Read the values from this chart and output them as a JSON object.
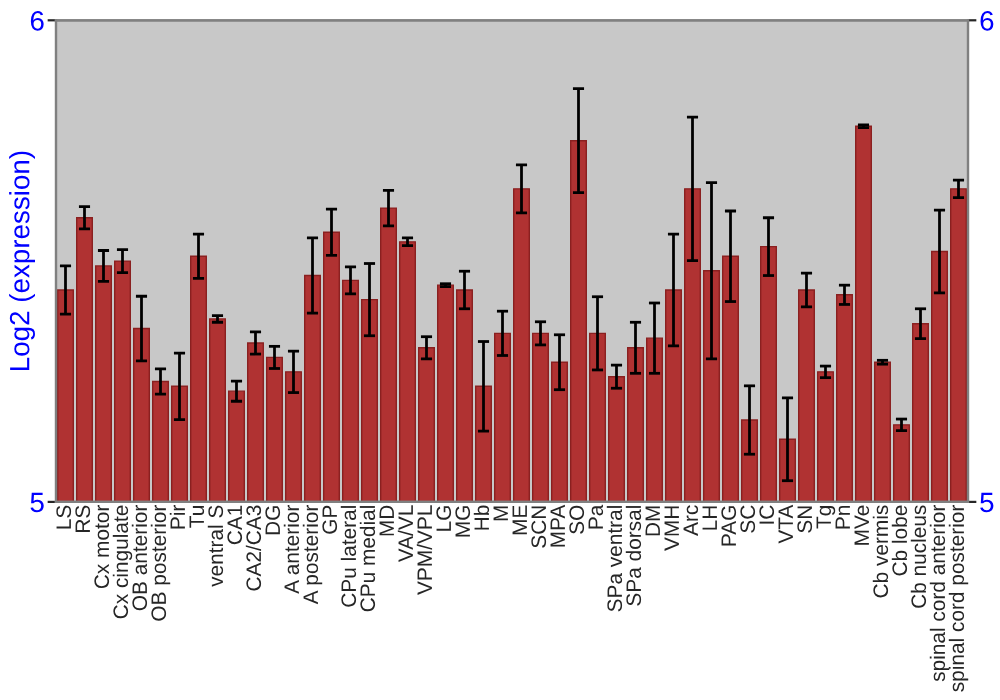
{
  "chart_data": {
    "type": "bar",
    "ylabel": "Log2 (expression)",
    "categories": [
      "LS",
      "RS",
      "Cx motor",
      "Cx cingulate",
      "OB anterior",
      "OB posterior",
      "Pir",
      "Tu",
      "ventral S",
      "CA1",
      "CA2/CA3",
      "DG",
      "A anterior",
      "A posterior",
      "GP",
      "CPu lateral",
      "CPu medial",
      "MD",
      "VA/VL",
      "VPM/VPL",
      "LG",
      "MG",
      "Hb",
      "M",
      "ME",
      "SCN",
      "MPA",
      "SO",
      "Pa",
      "SPa ventral",
      "SPa dorsal",
      "DM",
      "VMH",
      "Arc",
      "LH",
      "PAG",
      "SC",
      "IC",
      "VTA",
      "SN",
      "Tg",
      "Pn",
      "MVe",
      "Cb vermis",
      "Cb lobe",
      "Cb nucleus",
      "spinal cord anterior",
      "spinal cord posterior"
    ],
    "values": [
      5.44,
      5.59,
      5.49,
      5.5,
      5.36,
      5.25,
      5.24,
      5.51,
      5.38,
      5.23,
      5.33,
      5.3,
      5.27,
      5.47,
      5.56,
      5.46,
      5.42,
      5.61,
      5.54,
      5.32,
      5.45,
      5.44,
      5.24,
      5.35,
      5.65,
      5.35,
      5.29,
      5.75,
      5.35,
      5.26,
      5.32,
      5.34,
      5.44,
      5.65,
      5.48,
      5.51,
      5.17,
      5.53,
      5.13,
      5.44,
      5.27,
      5.43,
      5.78,
      5.29,
      5.16,
      5.37,
      5.52,
      5.65
    ],
    "errors": [
      0.05,
      0.023,
      0.032,
      0.024,
      0.067,
      0.026,
      0.069,
      0.046,
      0.007,
      0.021,
      0.023,
      0.023,
      0.043,
      0.078,
      0.048,
      0.028,
      0.075,
      0.037,
      0.008,
      0.023,
      0.003,
      0.039,
      0.093,
      0.046,
      0.05,
      0.024,
      0.057,
      0.108,
      0.076,
      0.024,
      0.053,
      0.073,
      0.116,
      0.149,
      0.183,
      0.094,
      0.071,
      0.06,
      0.086,
      0.035,
      0.012,
      0.02,
      0.003,
      0.004,
      0.012,
      0.031,
      0.086,
      0.018
    ],
    "color": "#b03232",
    "ylim": [
      5,
      6
    ],
    "yticks": [
      5,
      6
    ],
    "y2lim": [
      5,
      6
    ],
    "y2ticks": [
      5,
      6
    ],
    "legend": false
  }
}
